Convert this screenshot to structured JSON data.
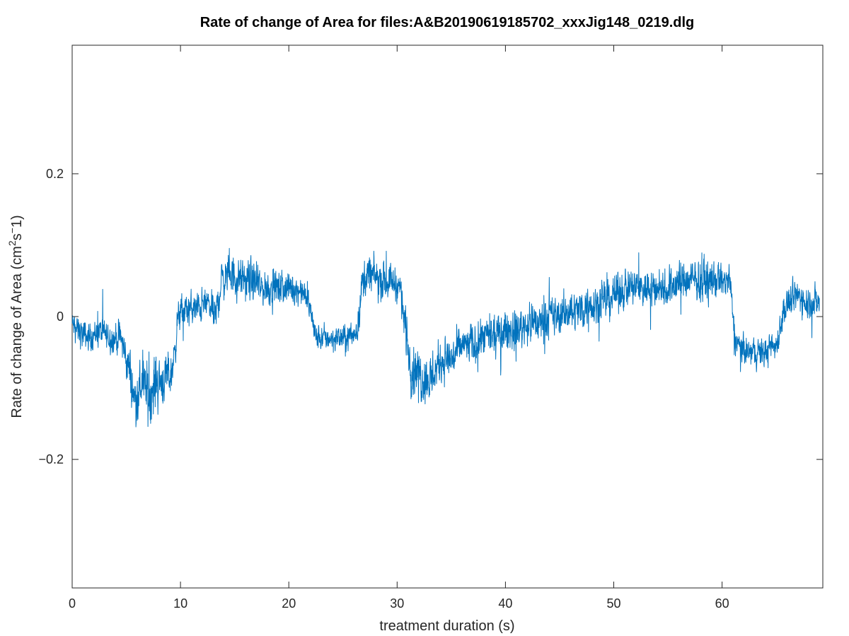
{
  "chart_data": {
    "type": "line",
    "title": "Rate of change of Area for files:A&B20190619185702_xxxJig148_0219.dlg",
    "xlabel": "treatment duration (s)",
    "ylabel_main": "Rate of change of Area (cm",
    "ylabel_sup1": "2",
    "ylabel_mid": "s",
    "ylabel_sup2": "−",
    "ylabel_end": "1)",
    "xlim": [
      0,
      69.3
    ],
    "ylim": [
      -0.38,
      0.38
    ],
    "x_ticks": [
      {
        "value": 0,
        "label": "0"
      },
      {
        "value": 10,
        "label": "10"
      },
      {
        "value": 20,
        "label": "20"
      },
      {
        "value": 30,
        "label": "30"
      },
      {
        "value": 40,
        "label": "40"
      },
      {
        "value": 50,
        "label": "50"
      },
      {
        "value": 60,
        "label": "60"
      }
    ],
    "y_ticks": [
      {
        "value": -0.2,
        "label": "−0.2"
      },
      {
        "value": 0,
        "label": "0"
      },
      {
        "value": 0.2,
        "label": "0.2"
      }
    ],
    "grid": false,
    "line_color": "#0072BD",
    "series": [
      {
        "x": [
          0,
          0.5,
          1.5,
          2.5,
          3.5,
          4.5,
          5.2,
          5.8,
          6.5,
          7.2,
          7.8,
          8.5,
          9.2,
          9.8,
          10.5,
          11.5,
          12.5,
          13.2,
          13.8,
          14.5,
          15.5,
          16.5,
          17.5,
          18.5,
          19.5,
          20.5,
          21.5,
          22.0,
          22.5,
          23.5,
          24.5,
          25.5,
          26.3,
          26.8,
          27.5,
          28.5,
          29.5,
          30.3,
          30.8,
          31.3,
          32.0,
          33.0,
          34.0,
          35.0,
          36.0,
          37.0,
          38.0,
          39.0,
          40.0,
          41.0,
          42.0,
          43.0,
          44.0,
          45.0,
          46.0,
          47.0,
          48.0,
          49.0,
          50.0,
          51.0,
          52.0,
          53.0,
          54.0,
          55.0,
          56.0,
          57.0,
          58.0,
          59.0,
          60.0,
          60.7,
          61.2,
          62.0,
          63.0,
          64.0,
          65.0,
          65.7,
          66.3,
          67.0,
          68.0,
          69.0
        ],
        "values": [
          -0.01,
          -0.02,
          -0.03,
          -0.02,
          -0.03,
          -0.03,
          -0.07,
          -0.12,
          -0.09,
          -0.11,
          -0.09,
          -0.09,
          -0.08,
          0.0,
          0.01,
          0.01,
          0.02,
          0.0,
          0.05,
          0.06,
          0.05,
          0.05,
          0.04,
          0.04,
          0.04,
          0.04,
          0.03,
          0.01,
          -0.03,
          -0.03,
          -0.03,
          -0.03,
          -0.02,
          0.05,
          0.06,
          0.05,
          0.05,
          0.04,
          -0.02,
          -0.07,
          -0.08,
          -0.09,
          -0.06,
          -0.06,
          -0.04,
          -0.04,
          -0.03,
          -0.03,
          -0.02,
          -0.02,
          -0.01,
          -0.01,
          0.0,
          0.0,
          0.01,
          0.01,
          0.02,
          0.02,
          0.03,
          0.04,
          0.04,
          0.04,
          0.04,
          0.04,
          0.05,
          0.05,
          0.05,
          0.05,
          0.05,
          0.05,
          -0.03,
          -0.05,
          -0.05,
          -0.05,
          -0.04,
          0.01,
          0.02,
          0.03,
          0.02,
          0.02
        ],
        "noise": [
          0.018,
          0.022,
          0.022,
          0.022,
          0.022,
          0.025,
          0.035,
          0.04,
          0.04,
          0.042,
          0.045,
          0.035,
          0.03,
          0.025,
          0.025,
          0.025,
          0.025,
          0.025,
          0.03,
          0.03,
          0.03,
          0.03,
          0.028,
          0.025,
          0.025,
          0.022,
          0.02,
          0.02,
          0.02,
          0.02,
          0.02,
          0.02,
          0.02,
          0.03,
          0.03,
          0.028,
          0.025,
          0.025,
          0.035,
          0.04,
          0.04,
          0.04,
          0.035,
          0.035,
          0.03,
          0.03,
          0.03,
          0.03,
          0.03,
          0.03,
          0.03,
          0.03,
          0.03,
          0.03,
          0.03,
          0.03,
          0.03,
          0.03,
          0.03,
          0.03,
          0.03,
          0.03,
          0.03,
          0.03,
          0.03,
          0.03,
          0.03,
          0.03,
          0.025,
          0.025,
          0.02,
          0.022,
          0.022,
          0.022,
          0.022,
          0.025,
          0.025,
          0.025,
          0.025,
          0.025
        ]
      }
    ]
  }
}
